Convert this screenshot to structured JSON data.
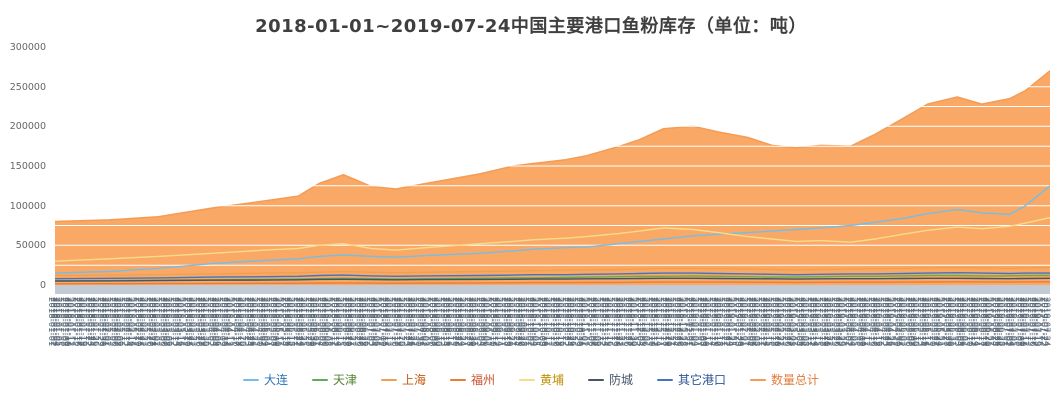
{
  "title": "2018-01-01~2019-07-24中国主要港口鱼粉库存（单位：吨）",
  "axis_strip_color": "#c2cbd5",
  "chart_data": {
    "type": "area",
    "title": "2018-01-01~2019-07-24中国主要港口鱼粉库存（单位：吨）",
    "unit": "吨",
    "legend_position": "bottom",
    "x_axis": {
      "start": "2018-01-01",
      "end": "2019-07-24",
      "tick_frequency": "daily-weekdays",
      "label_rotation": 90
    },
    "y_axis": {
      "min": 0,
      "max": 300000,
      "tick_interval": 50000,
      "tick_labels": [
        "0",
        "50000",
        "100000",
        "150000",
        "200000",
        "250000",
        "300000"
      ]
    },
    "grid": {
      "minor_interval": 25000,
      "color": "#ffffff"
    },
    "sample_dates": [
      "2018-01-01",
      "2018-02-01",
      "2018-03-01",
      "2018-04-01",
      "2018-05-01",
      "2018-05-20",
      "2018-06-01",
      "2018-06-15",
      "2018-07-01",
      "2018-07-15",
      "2018-08-01",
      "2018-09-01",
      "2018-09-20",
      "2018-10-01",
      "2018-10-20",
      "2018-11-01",
      "2018-11-20",
      "2018-12-01",
      "2018-12-15",
      "2019-01-01",
      "2019-01-15",
      "2019-02-01",
      "2019-02-15",
      "2019-03-01",
      "2019-03-15",
      "2019-04-01",
      "2019-04-15",
      "2019-05-01",
      "2019-05-15",
      "2019-06-01",
      "2019-06-15",
      "2019-07-01",
      "2019-07-10",
      "2019-07-24"
    ],
    "series": [
      {
        "key": "dalian",
        "name": "大连",
        "style": "line",
        "color": "#74bde8",
        "text_color": "#2e74b5",
        "values": [
          15000,
          17000,
          21000,
          27000,
          31000,
          33000,
          36000,
          38000,
          36000,
          35000,
          37000,
          40000,
          43000,
          45000,
          47000,
          48000,
          52000,
          55000,
          58000,
          62000,
          64000,
          66000,
          68000,
          70000,
          72000,
          75000,
          79000,
          84000,
          90000,
          95000,
          91000,
          89000,
          100000,
          125000
        ]
      },
      {
        "key": "tianjin",
        "name": "天津",
        "style": "line",
        "color": "#5fae53",
        "text_color": "#548235",
        "values": [
          5000,
          5500,
          6000,
          6500,
          7000,
          7500,
          8000,
          8500,
          8000,
          7500,
          8000,
          8500,
          9000,
          9000,
          9500,
          10000,
          10500,
          11000,
          11000,
          11500,
          11000,
          10500,
          10000,
          10000,
          10500,
          11000,
          11000,
          11500,
          12000,
          12000,
          11500,
          11500,
          12000,
          12000
        ]
      },
      {
        "key": "shanghai",
        "name": "上海",
        "style": "line",
        "color": "#f2a04e",
        "text_color": "#c55a11",
        "values": [
          12000,
          12500,
          13000,
          14000,
          15000,
          15500,
          16000,
          17000,
          16000,
          15500,
          16000,
          17000,
          17500,
          18000,
          18500,
          19000,
          19500,
          20000,
          21000,
          21000,
          20500,
          20000,
          19500,
          19000,
          19500,
          20000,
          20500,
          21000,
          21500,
          22000,
          21500,
          21000,
          21500,
          22000
        ]
      },
      {
        "key": "fuzhou",
        "name": "福州",
        "style": "line",
        "color": "#ed7d31",
        "text_color": "#c9502c",
        "values": [
          1500,
          1600,
          1800,
          2000,
          2200,
          2300,
          2500,
          2600,
          2400,
          2300,
          2500,
          2700,
          2800,
          3000,
          3000,
          3200,
          3300,
          3500,
          3600,
          3700,
          3600,
          3500,
          3400,
          3300,
          3400,
          3500,
          3500,
          3600,
          3800,
          4000,
          3900,
          3800,
          3900,
          4000
        ]
      },
      {
        "key": "huangpu",
        "name": "黄埔",
        "style": "line",
        "color": "#f7dc8a",
        "text_color": "#bf8f00",
        "values": [
          30000,
          33000,
          36000,
          40000,
          44000,
          46000,
          50000,
          52000,
          46000,
          44000,
          47000,
          52000,
          55000,
          57000,
          59000,
          61000,
          65000,
          68000,
          72000,
          70000,
          66000,
          61000,
          58000,
          55000,
          56000,
          54000,
          58000,
          64000,
          69000,
          73000,
          71000,
          74000,
          78000,
          85000
        ]
      },
      {
        "key": "fangcheng",
        "name": "防城",
        "style": "line",
        "color": "#44546a",
        "text_color": "#44546a",
        "values": [
          5000,
          5200,
          5500,
          6000,
          6200,
          6500,
          7000,
          7200,
          6800,
          6500,
          6800,
          7000,
          7200,
          7500,
          7500,
          7800,
          8000,
          8200,
          8500,
          8500,
          8200,
          8000,
          7800,
          7500,
          7800,
          8000,
          8000,
          8200,
          8500,
          8500,
          8200,
          8000,
          8200,
          8500
        ]
      },
      {
        "key": "other-ports",
        "name": "其它港口",
        "style": "line",
        "color": "#4472c4",
        "text_color": "#2f5597",
        "values": [
          8000,
          8500,
          9000,
          10000,
          10500,
          11000,
          12000,
          12500,
          11500,
          11000,
          11500,
          12000,
          12500,
          13000,
          13000,
          13500,
          14000,
          14500,
          15000,
          15000,
          14500,
          14000,
          13500,
          13000,
          13500,
          14000,
          14000,
          14500,
          15000,
          15500,
          15000,
          14500,
          15000,
          15000
        ]
      },
      {
        "key": "total",
        "name": "数量总计",
        "style": "area",
        "color": "#f59b54",
        "fill": "#f9a965",
        "text_color": "#e07b39",
        "values": [
          80000,
          82000,
          86000,
          97000,
          106000,
          112000,
          128000,
          139000,
          124000,
          121000,
          128000,
          140000,
          150000,
          153000,
          158000,
          163000,
          175000,
          183000,
          197000,
          200000,
          193000,
          186000,
          176000,
          173000,
          176000,
          175000,
          190000,
          210000,
          228000,
          237000,
          228000,
          235000,
          245000,
          270000
        ]
      }
    ]
  }
}
